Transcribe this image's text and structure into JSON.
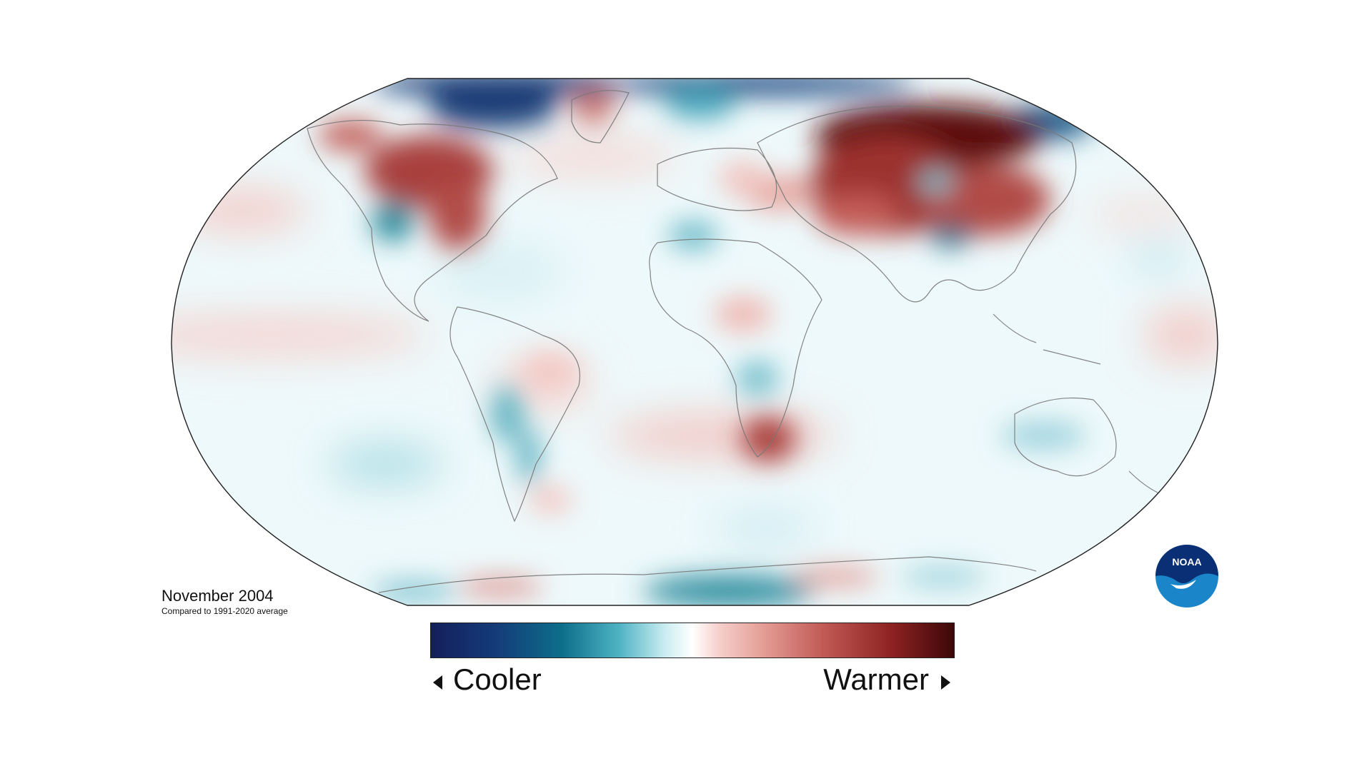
{
  "map": {
    "date": "November 2004",
    "baseline_note": "Compared to 1991-2020 average"
  },
  "legend": {
    "cooler": "Cooler",
    "warmer": "Warmer",
    "colors": [
      "#141f5c",
      "#0d6e8a",
      "#ffffff",
      "#c15a55",
      "#3d0808"
    ]
  },
  "logo": {
    "text": "NOAA",
    "colors": [
      "#0a2f74",
      "#1a86c9"
    ]
  }
}
